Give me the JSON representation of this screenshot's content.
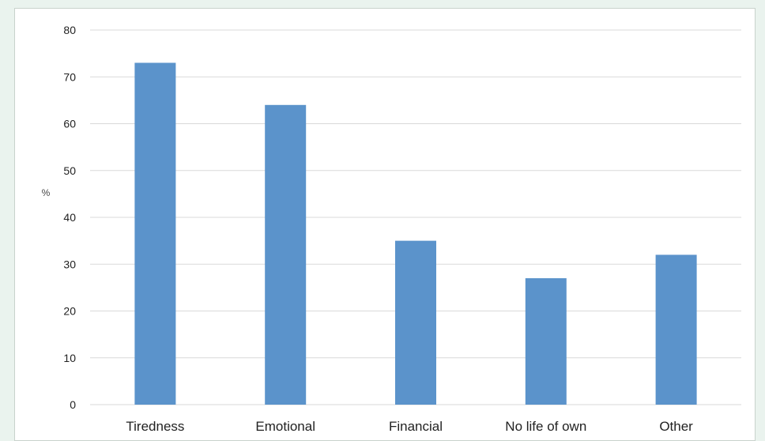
{
  "chart_data": {
    "type": "bar",
    "title": "",
    "xlabel": "",
    "ylabel": "%",
    "categories": [
      "Tiredness",
      "Emotional",
      "Financial",
      "No life of own",
      "Other"
    ],
    "values": [
      73,
      64,
      35,
      27,
      32
    ],
    "ylim": [
      0,
      80
    ],
    "yticks": [
      "0",
      "10",
      "20",
      "30",
      "40",
      "50",
      "60",
      "70",
      "80"
    ],
    "grid": true,
    "legend": "none",
    "colors": {
      "bar": "#5b93cb",
      "grid": "#d9d9d9",
      "page_background": "#eaf3ee",
      "plot_background": "#ffffff"
    }
  }
}
